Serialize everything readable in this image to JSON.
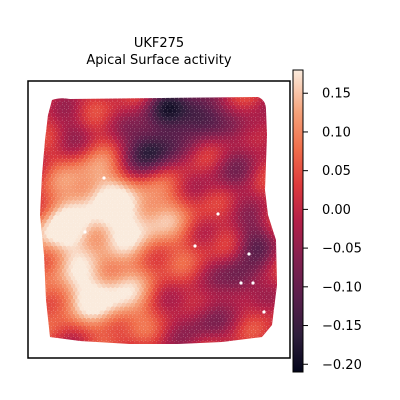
{
  "chart_data": {
    "type": "heatmap",
    "title_line1": "UKF275",
    "title_line2": "Apical Surface activity",
    "xlabel": "",
    "ylabel": "",
    "colorbar": {
      "colormap": "rocket",
      "range": [
        -0.21,
        0.18
      ],
      "ticks": [
        0.15,
        0.1,
        0.05,
        0.0,
        -0.05,
        -0.1,
        -0.15,
        -0.2
      ],
      "tick_labels": [
        "0.15",
        "0.10",
        "0.05",
        "0.00",
        "−0.05",
        "−0.10",
        "−0.15",
        "−0.20"
      ]
    },
    "grid": false,
    "legend": "colorbar-right"
  },
  "colors": {
    "background": "#ffffff",
    "missing_spot": "#ffffff",
    "frame": "#000000"
  }
}
